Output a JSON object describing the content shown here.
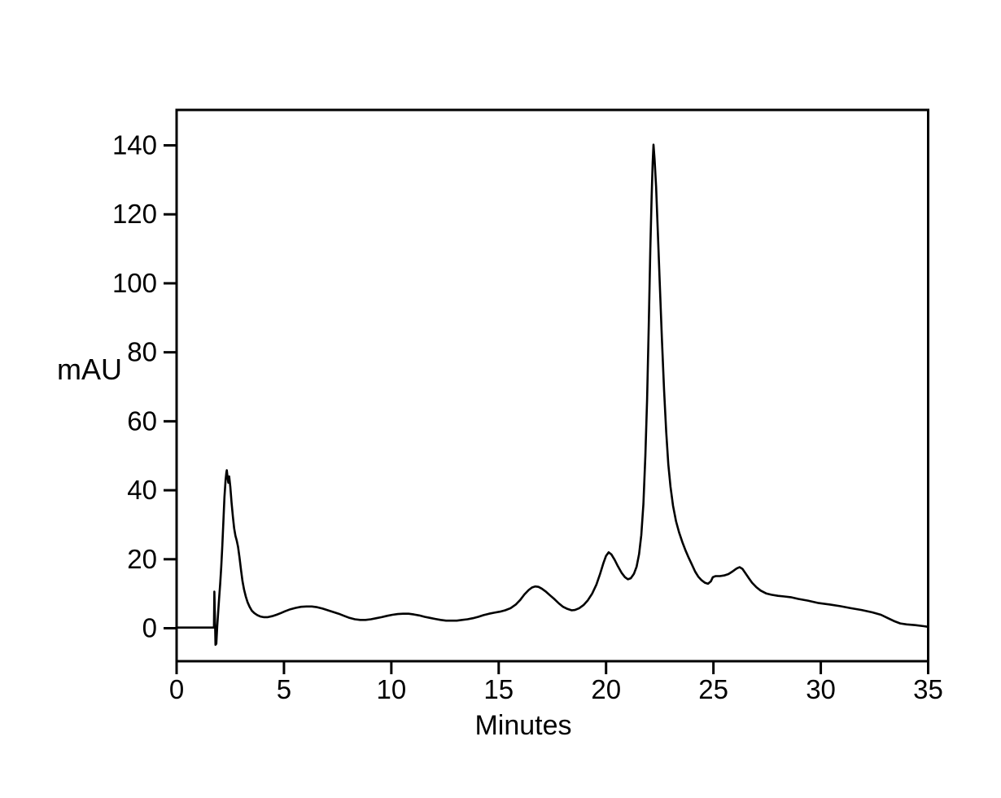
{
  "page": {
    "background_color": "#ffffff",
    "foreground_color": "#000000"
  },
  "chart_data": {
    "type": "line",
    "title": "",
    "xlabel": "Minutes",
    "ylabel": "mAU",
    "xlim": [
      0,
      35
    ],
    "ylim": [
      -10,
      150
    ],
    "x_ticks": [
      0,
      5,
      10,
      15,
      20,
      25,
      30,
      35
    ],
    "y_ticks": [
      0,
      20,
      40,
      60,
      80,
      100,
      120,
      140
    ],
    "grid": false,
    "legend_position": "none",
    "frame": "full-box",
    "line_color": "#000000",
    "series": [
      {
        "name": "detector-signal",
        "points": [
          [
            0,
            0.2
          ],
          [
            0.4,
            0.2
          ],
          [
            0.8,
            0.2
          ],
          [
            1.2,
            0.2
          ],
          [
            1.6,
            0.2
          ],
          [
            1.74,
            0.2
          ],
          [
            1.76,
            10.6
          ],
          [
            1.79,
            2.5
          ],
          [
            1.81,
            -4.8
          ],
          [
            1.85,
            -4.5
          ],
          [
            1.89,
            0.5
          ],
          [
            1.93,
            4
          ],
          [
            1.98,
            8.5
          ],
          [
            2.03,
            13
          ],
          [
            2.08,
            18
          ],
          [
            2.13,
            24
          ],
          [
            2.18,
            31
          ],
          [
            2.23,
            38
          ],
          [
            2.28,
            43
          ],
          [
            2.32,
            45.2
          ],
          [
            2.34,
            45.8
          ],
          [
            2.38,
            43.4
          ],
          [
            2.41,
            42.2
          ],
          [
            2.45,
            44
          ],
          [
            2.5,
            41
          ],
          [
            2.56,
            36.5
          ],
          [
            2.62,
            32.5
          ],
          [
            2.68,
            29
          ],
          [
            2.74,
            26.8
          ],
          [
            2.8,
            25.4
          ],
          [
            2.86,
            23.6
          ],
          [
            2.93,
            20.5
          ],
          [
            3.0,
            16.8
          ],
          [
            3.07,
            13.6
          ],
          [
            3.14,
            11.2
          ],
          [
            3.22,
            9.2
          ],
          [
            3.3,
            7.6
          ],
          [
            3.4,
            6.2
          ],
          [
            3.5,
            5.1
          ],
          [
            3.62,
            4.4
          ],
          [
            3.76,
            3.8
          ],
          [
            3.9,
            3.4
          ],
          [
            4.05,
            3.2
          ],
          [
            4.25,
            3.2
          ],
          [
            4.45,
            3.5
          ],
          [
            4.65,
            3.9
          ],
          [
            4.85,
            4.4
          ],
          [
            5.05,
            4.9
          ],
          [
            5.3,
            5.5
          ],
          [
            5.55,
            5.9
          ],
          [
            5.8,
            6.2
          ],
          [
            6.05,
            6.3
          ],
          [
            6.3,
            6.3
          ],
          [
            6.55,
            6.1
          ],
          [
            6.8,
            5.7
          ],
          [
            7.05,
            5.2
          ],
          [
            7.3,
            4.7
          ],
          [
            7.55,
            4.2
          ],
          [
            7.8,
            3.6
          ],
          [
            8.05,
            3.0
          ],
          [
            8.3,
            2.6
          ],
          [
            8.55,
            2.4
          ],
          [
            8.8,
            2.4
          ],
          [
            9.05,
            2.6
          ],
          [
            9.3,
            2.9
          ],
          [
            9.55,
            3.2
          ],
          [
            9.8,
            3.6
          ],
          [
            10.05,
            3.9
          ],
          [
            10.3,
            4.1
          ],
          [
            10.55,
            4.2
          ],
          [
            10.8,
            4.2
          ],
          [
            11.05,
            4.0
          ],
          [
            11.3,
            3.7
          ],
          [
            11.55,
            3.3
          ],
          [
            11.8,
            3.0
          ],
          [
            12.05,
            2.7
          ],
          [
            12.3,
            2.4
          ],
          [
            12.55,
            2.2
          ],
          [
            12.8,
            2.2
          ],
          [
            13.05,
            2.2
          ],
          [
            13.3,
            2.4
          ],
          [
            13.55,
            2.6
          ],
          [
            13.8,
            2.9
          ],
          [
            14.05,
            3.3
          ],
          [
            14.3,
            3.8
          ],
          [
            14.55,
            4.2
          ],
          [
            14.8,
            4.5
          ],
          [
            15.05,
            4.8
          ],
          [
            15.3,
            5.2
          ],
          [
            15.55,
            5.8
          ],
          [
            15.8,
            6.9
          ],
          [
            16.0,
            8.2
          ],
          [
            16.2,
            9.8
          ],
          [
            16.4,
            11.1
          ],
          [
            16.55,
            11.8
          ],
          [
            16.7,
            12.1
          ],
          [
            16.85,
            12.0
          ],
          [
            17.0,
            11.5
          ],
          [
            17.2,
            10.6
          ],
          [
            17.4,
            9.5
          ],
          [
            17.6,
            8.4
          ],
          [
            17.8,
            7.2
          ],
          [
            18.0,
            6.2
          ],
          [
            18.2,
            5.6
          ],
          [
            18.4,
            5.2
          ],
          [
            18.55,
            5.3
          ],
          [
            18.75,
            5.8
          ],
          [
            18.95,
            6.7
          ],
          [
            19.15,
            8.1
          ],
          [
            19.35,
            10.0
          ],
          [
            19.55,
            12.6
          ],
          [
            19.72,
            15.7
          ],
          [
            19.88,
            18.9
          ],
          [
            20.0,
            21.0
          ],
          [
            20.12,
            22.0
          ],
          [
            20.25,
            21.4
          ],
          [
            20.4,
            19.8
          ],
          [
            20.55,
            18.0
          ],
          [
            20.72,
            16.1
          ],
          [
            20.88,
            14.8
          ],
          [
            21.02,
            14.2
          ],
          [
            21.15,
            14.5
          ],
          [
            21.3,
            15.8
          ],
          [
            21.42,
            17.8
          ],
          [
            21.54,
            21.5
          ],
          [
            21.64,
            27
          ],
          [
            21.74,
            36
          ],
          [
            21.83,
            50
          ],
          [
            21.91,
            66
          ],
          [
            21.99,
            88
          ],
          [
            22.06,
            110
          ],
          [
            22.12,
            125
          ],
          [
            22.17,
            135
          ],
          [
            22.21,
            140.2
          ],
          [
            22.26,
            136
          ],
          [
            22.33,
            128
          ],
          [
            22.41,
            115
          ],
          [
            22.5,
            100
          ],
          [
            22.6,
            84
          ],
          [
            22.7,
            69
          ],
          [
            22.8,
            57
          ],
          [
            22.9,
            47.5
          ],
          [
            23.0,
            41
          ],
          [
            23.12,
            35.5
          ],
          [
            23.26,
            31
          ],
          [
            23.4,
            27.8
          ],
          [
            23.55,
            25
          ],
          [
            23.7,
            22.6
          ],
          [
            23.85,
            20.4
          ],
          [
            24.0,
            18.4
          ],
          [
            24.15,
            16.4
          ],
          [
            24.3,
            14.9
          ],
          [
            24.45,
            13.9
          ],
          [
            24.6,
            13.2
          ],
          [
            24.75,
            12.9
          ],
          [
            24.88,
            13.6
          ],
          [
            24.97,
            14.8
          ],
          [
            25.1,
            15.1
          ],
          [
            25.3,
            15.1
          ],
          [
            25.5,
            15.3
          ],
          [
            25.7,
            15.7
          ],
          [
            25.9,
            16.5
          ],
          [
            26.08,
            17.3
          ],
          [
            26.22,
            17.7
          ],
          [
            26.35,
            17.2
          ],
          [
            26.5,
            15.9
          ],
          [
            26.65,
            14.5
          ],
          [
            26.8,
            13.2
          ],
          [
            27.0,
            11.9
          ],
          [
            27.2,
            10.9
          ],
          [
            27.45,
            10.1
          ],
          [
            27.7,
            9.7
          ],
          [
            28.0,
            9.4
          ],
          [
            28.3,
            9.2
          ],
          [
            28.6,
            9.0
          ],
          [
            28.95,
            8.5
          ],
          [
            29.4,
            8.0
          ],
          [
            29.9,
            7.3
          ],
          [
            30.4,
            6.9
          ],
          [
            30.9,
            6.4
          ],
          [
            31.4,
            5.8
          ],
          [
            31.9,
            5.3
          ],
          [
            32.4,
            4.6
          ],
          [
            32.8,
            3.9
          ],
          [
            33.1,
            3.0
          ],
          [
            33.4,
            2.1
          ],
          [
            33.7,
            1.4
          ],
          [
            34.0,
            1.1
          ],
          [
            34.4,
            0.9
          ],
          [
            34.8,
            0.6
          ],
          [
            35.0,
            0.4
          ]
        ]
      }
    ]
  }
}
